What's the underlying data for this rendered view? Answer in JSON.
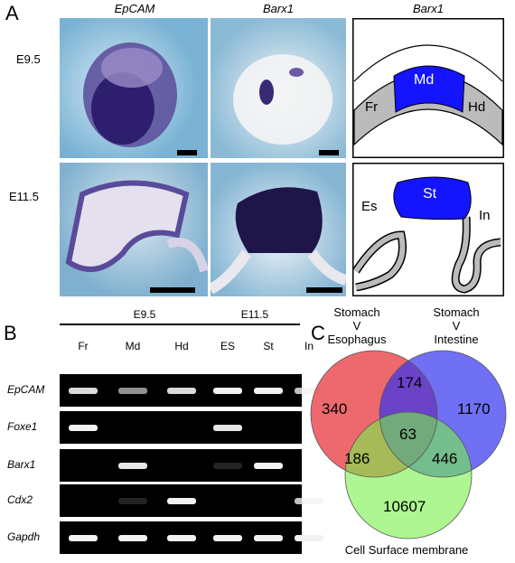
{
  "panel_a": {
    "letter": "A",
    "col_titles": [
      "EpCAM",
      "Barx1",
      "Barx1"
    ],
    "row_labels": [
      "E9.5",
      "E11.5"
    ],
    "diagram_e95": {
      "labels": [
        "Md",
        "Fr",
        "Hd"
      ],
      "colors": {
        "md": "#1414ff",
        "side": "#bbbbbb"
      }
    },
    "diagram_e115": {
      "labels": [
        "St",
        "Es",
        "In"
      ],
      "colors": {
        "st": "#1414ff"
      }
    }
  },
  "panel_b": {
    "letter": "B",
    "stages": [
      "E9.5",
      "E11.5"
    ],
    "lanes": [
      "Fr",
      "Md",
      "Hd",
      "ES",
      "St",
      "In"
    ],
    "genes": [
      {
        "name": "EpCAM",
        "bands": [
          0.9,
          0.6,
          0.9,
          1.0,
          1.0,
          0.8
        ]
      },
      {
        "name": "Foxe1",
        "bands": [
          1.0,
          0,
          0,
          0.95,
          0,
          0
        ]
      },
      {
        "name": "Barx1",
        "bands": [
          0,
          0.95,
          0,
          0.1,
          1.0,
          0
        ]
      },
      {
        "name": "Cdx2",
        "bands": [
          0,
          0.1,
          1.0,
          0,
          0,
          0.8
        ]
      },
      {
        "name": "Gapdh",
        "bands": [
          1.0,
          1.0,
          1.0,
          1.0,
          1.0,
          1.0
        ]
      }
    ]
  },
  "panel_c": {
    "letter": "C",
    "set_labels": [
      "Stomach\nV\nEsophagus",
      "Stomach\nV\nIntestine",
      "Cell Surface membrane"
    ],
    "colors": {
      "red": "#e8434a",
      "blue": "#3333f0",
      "green": "#77f047"
    },
    "counts": {
      "red_only": "340",
      "blue_only": "1170",
      "green_only": "10607",
      "red_blue": "174",
      "red_green": "186",
      "blue_green": "446",
      "all": "63"
    }
  }
}
